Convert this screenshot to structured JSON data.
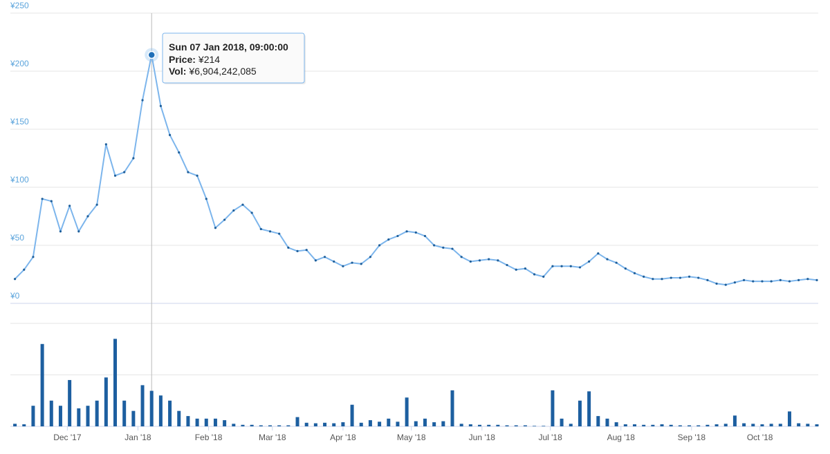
{
  "chart_data": {
    "type": "line",
    "x": [
      "2017-11-08",
      "2017-11-12",
      "2017-11-16",
      "2017-11-20",
      "2017-11-24",
      "2017-11-28",
      "2017-12-02",
      "2017-12-06",
      "2017-12-10",
      "2017-12-14",
      "2017-12-18",
      "2017-12-22",
      "2017-12-26",
      "2017-12-30",
      "2018-01-03",
      "2018-01-07",
      "2018-01-11",
      "2018-01-15",
      "2018-01-19",
      "2018-01-23",
      "2018-01-27",
      "2018-01-31",
      "2018-02-04",
      "2018-02-08",
      "2018-02-12",
      "2018-02-16",
      "2018-02-20",
      "2018-02-24",
      "2018-02-28",
      "2018-03-04",
      "2018-03-08",
      "2018-03-12",
      "2018-03-16",
      "2018-03-20",
      "2018-03-24",
      "2018-03-28",
      "2018-04-01",
      "2018-04-05",
      "2018-04-09",
      "2018-04-13",
      "2018-04-17",
      "2018-04-21",
      "2018-04-25",
      "2018-04-29",
      "2018-05-03",
      "2018-05-07",
      "2018-05-11",
      "2018-05-15",
      "2018-05-19",
      "2018-05-23",
      "2018-05-27",
      "2018-05-31",
      "2018-06-04",
      "2018-06-08",
      "2018-06-12",
      "2018-06-16",
      "2018-06-20",
      "2018-06-24",
      "2018-06-28",
      "2018-07-02",
      "2018-07-06",
      "2018-07-10",
      "2018-07-14",
      "2018-07-18",
      "2018-07-22",
      "2018-07-26",
      "2018-07-30",
      "2018-08-03",
      "2018-08-07",
      "2018-08-11",
      "2018-08-15",
      "2018-08-19",
      "2018-08-23",
      "2018-08-27",
      "2018-08-31",
      "2018-09-04",
      "2018-09-08",
      "2018-09-12",
      "2018-09-16",
      "2018-09-20",
      "2018-09-24",
      "2018-09-28",
      "2018-10-02",
      "2018-10-06",
      "2018-10-10",
      "2018-10-14",
      "2018-10-18",
      "2018-10-22",
      "2018-10-26"
    ],
    "series": [
      {
        "type": "line",
        "color": "#7cb5ec",
        "values": [
          21,
          29,
          40,
          90,
          88,
          62,
          84,
          62,
          75,
          85,
          137,
          110,
          113,
          125,
          175,
          214,
          170,
          145,
          130,
          113,
          110,
          90,
          65,
          72,
          80,
          85,
          78,
          64,
          62,
          60,
          48,
          45,
          46,
          37,
          40,
          36,
          32,
          35,
          34,
          40,
          50,
          55,
          58,
          62,
          61,
          58,
          50,
          48,
          47,
          40,
          36,
          37,
          38,
          37,
          33,
          29,
          30,
          25,
          23,
          32,
          32,
          32,
          31,
          36,
          43,
          38,
          35,
          30,
          26,
          23,
          21,
          21,
          22,
          22,
          23,
          22,
          20,
          17,
          16,
          18,
          20,
          19,
          19,
          19,
          20,
          19,
          20,
          21,
          20
        ]
      },
      {
        "type": "bar",
        "axis": "y2",
        "color": "#1d5fa0",
        "values": [
          500000000,
          400000000,
          4000000000,
          16000000000,
          5000000000,
          4000000000,
          9000000000,
          3500000000,
          4000000000,
          5000000000,
          9500000000,
          17000000000,
          5000000000,
          3000000000,
          8000000000,
          6904242085,
          6000000000,
          5000000000,
          3000000000,
          2000000000,
          1500000000,
          1500000000,
          1500000000,
          1200000000,
          500000000,
          300000000,
          300000000,
          200000000,
          200000000,
          200000000,
          200000000,
          1800000000,
          700000000,
          600000000,
          700000000,
          600000000,
          800000000,
          4200000000,
          700000000,
          1200000000,
          900000000,
          1500000000,
          900000000,
          5600000000,
          1000000000,
          1500000000,
          800000000,
          1000000000,
          7000000000,
          500000000,
          400000000,
          300000000,
          300000000,
          300000000,
          200000000,
          200000000,
          200000000,
          100000000,
          100000000,
          7000000000,
          1500000000,
          500000000,
          5000000000,
          6800000000,
          2000000000,
          1500000000,
          800000000,
          400000000,
          400000000,
          300000000,
          300000000,
          400000000,
          300000000,
          200000000,
          200000000,
          200000000,
          300000000,
          400000000,
          500000000,
          2100000000,
          600000000,
          500000000,
          400000000,
          500000000,
          500000000,
          2900000000,
          600000000,
          500000000,
          400000000
        ]
      }
    ],
    "xlim": [
      "2017-11-06",
      "2018-10-26"
    ],
    "xticks": [
      {
        "value": "2017-12-01",
        "label": "Dec '17"
      },
      {
        "value": "2018-01-01",
        "label": "Jan '18"
      },
      {
        "value": "2018-02-01",
        "label": "Feb '18"
      },
      {
        "value": "2018-03-01",
        "label": "Mar '18"
      },
      {
        "value": "2018-04-01",
        "label": "Apr '18"
      },
      {
        "value": "2018-05-01",
        "label": "May '18"
      },
      {
        "value": "2018-06-01",
        "label": "Jun '18"
      },
      {
        "value": "2018-07-01",
        "label": "Jul '18"
      },
      {
        "value": "2018-08-01",
        "label": "Aug '18"
      },
      {
        "value": "2018-09-01",
        "label": "Sep '18"
      },
      {
        "value": "2018-10-01",
        "label": "Oct '18"
      }
    ],
    "ylim": [
      0,
      250
    ],
    "yticks": [
      {
        "value": 0,
        "label": "¥0"
      },
      {
        "value": 50,
        "label": "¥50"
      },
      {
        "value": 100,
        "label": "¥100"
      },
      {
        "value": 150,
        "label": "¥150"
      },
      {
        "value": 200,
        "label": "¥200"
      },
      {
        "value": 250,
        "label": "¥250"
      }
    ],
    "y2lim": [
      0,
      20000000000
    ],
    "y2ticks": [
      0,
      10000000000,
      20000000000
    ],
    "grid": true,
    "tooltip": {
      "date": "Sun 07 Jan 2018, 09:00:00",
      "price_label": "Price:",
      "price": "¥214",
      "vol_label": "Vol:",
      "vol": "¥6,904,242,085"
    }
  }
}
